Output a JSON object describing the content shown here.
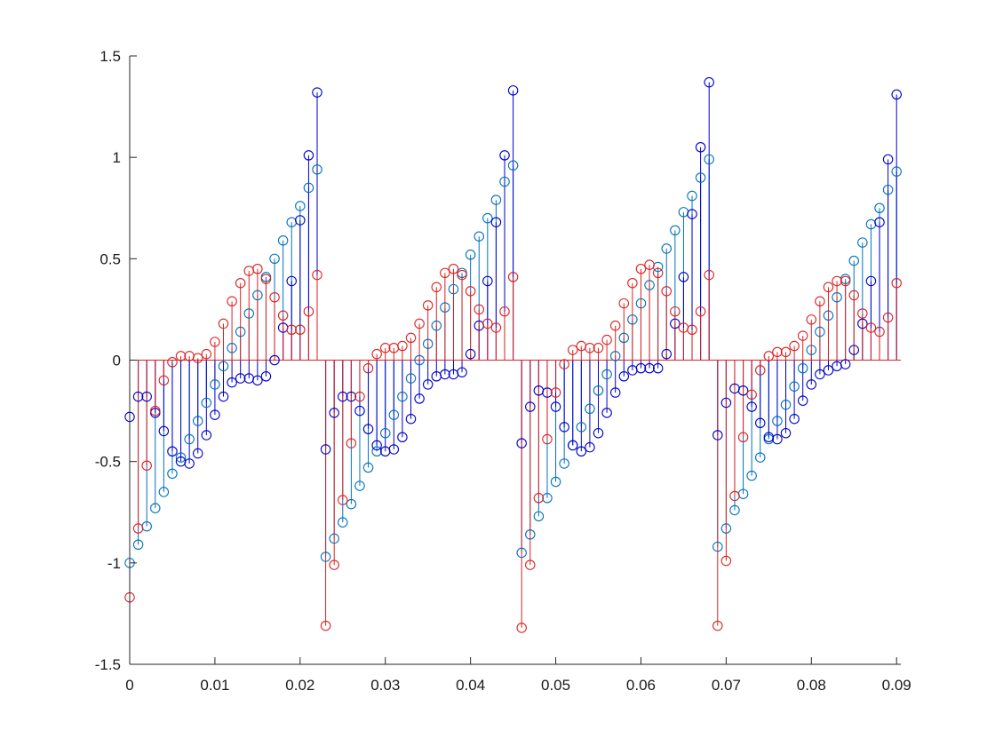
{
  "chart_data": {
    "type": "stem",
    "title": "",
    "xlabel": "",
    "ylabel": "",
    "xlim": [
      0,
      0.0905
    ],
    "ylim": [
      -1.5,
      1.5
    ],
    "xticks": [
      0,
      0.01,
      0.02,
      0.03,
      0.04,
      0.05,
      0.06,
      0.07,
      0.08,
      0.09
    ],
    "xtick_labels": [
      "0",
      "0.01",
      "0.02",
      "0.03",
      "0.04",
      "0.05",
      "0.06",
      "0.07",
      "0.08",
      "0.09"
    ],
    "yticks": [
      -1.5,
      -1,
      -0.5,
      0,
      0.5,
      1,
      1.5
    ],
    "ytick_labels": [
      "-1.5",
      "-1",
      "-0.5",
      "0",
      "0.5",
      "1",
      "1.5"
    ],
    "grid": false,
    "legend": "none",
    "x_start": 0,
    "x_step": 0.001,
    "series": [
      {
        "color": "#0072bd",
        "marker": "circle",
        "values": [
          -1.0,
          -0.91,
          -0.82,
          -0.73,
          -0.65,
          -0.56,
          -0.48,
          -0.39,
          -0.3,
          -0.21,
          -0.12,
          -0.03,
          0.06,
          0.14,
          0.23,
          0.32,
          0.41,
          0.5,
          0.59,
          0.68,
          0.76,
          0.85,
          0.94,
          -0.97,
          -0.88,
          -0.8,
          -0.71,
          -0.62,
          -0.53,
          -0.45,
          -0.36,
          -0.27,
          -0.18,
          -0.09,
          0.0,
          0.08,
          0.17,
          0.26,
          0.35,
          0.43,
          0.52,
          0.61,
          0.7,
          0.79,
          0.88,
          0.96,
          -0.95,
          -0.86,
          -0.77,
          -0.68,
          -0.6,
          -0.51,
          -0.42,
          -0.33,
          -0.24,
          -0.15,
          -0.07,
          0.02,
          0.11,
          0.2,
          0.28,
          0.37,
          0.46,
          0.55,
          0.64,
          0.73,
          0.81,
          0.9,
          0.99,
          -0.92,
          -0.83,
          -0.74,
          -0.66,
          -0.57,
          -0.48,
          -0.39,
          -0.3,
          -0.22,
          -0.13,
          -0.04,
          0.05,
          0.14,
          0.22,
          0.31,
          0.4,
          0.49,
          0.58,
          0.67,
          0.75,
          0.84,
          0.93
        ]
      },
      {
        "color": "#0000cc",
        "marker": "circle",
        "values": [
          -0.28,
          -0.18,
          -0.18,
          -0.26,
          -0.35,
          -0.45,
          -0.5,
          -0.51,
          -0.46,
          -0.37,
          -0.27,
          -0.18,
          -0.11,
          -0.09,
          -0.09,
          -0.1,
          -0.08,
          0.0,
          0.16,
          0.39,
          0.69,
          1.01,
          1.32,
          -0.44,
          -0.26,
          -0.18,
          -0.18,
          -0.25,
          -0.34,
          -0.42,
          -0.45,
          -0.44,
          -0.38,
          -0.29,
          -0.19,
          -0.12,
          -0.08,
          -0.07,
          -0.07,
          -0.06,
          0.03,
          0.17,
          0.39,
          0.68,
          1.01,
          1.33,
          -0.41,
          -0.23,
          -0.15,
          -0.16,
          -0.23,
          -0.33,
          -0.42,
          -0.45,
          -0.43,
          -0.36,
          -0.26,
          -0.16,
          -0.08,
          -0.05,
          -0.04,
          -0.04,
          -0.04,
          0.03,
          0.18,
          0.41,
          0.72,
          1.05,
          1.37,
          -0.37,
          -0.21,
          -0.14,
          -0.15,
          -0.23,
          -0.31,
          -0.38,
          -0.39,
          -0.36,
          -0.29,
          -0.2,
          -0.12,
          -0.07,
          -0.05,
          -0.03,
          -0.02,
          0.05,
          0.18,
          0.39,
          0.68,
          0.99,
          1.31
        ]
      },
      {
        "color": "#dd2222",
        "marker": "circle",
        "values": [
          -1.17,
          -0.83,
          -0.52,
          -0.25,
          -0.1,
          -0.01,
          0.02,
          0.02,
          0.01,
          0.03,
          0.09,
          0.18,
          0.29,
          0.38,
          0.44,
          0.45,
          0.4,
          0.31,
          0.22,
          0.15,
          0.15,
          0.24,
          0.42,
          -1.31,
          -1.01,
          -0.69,
          -0.41,
          -0.18,
          -0.04,
          0.03,
          0.06,
          0.06,
          0.07,
          0.11,
          0.18,
          0.27,
          0.36,
          0.43,
          0.45,
          0.42,
          0.34,
          0.25,
          0.18,
          0.16,
          0.24,
          0.41,
          -1.32,
          -1.01,
          -0.68,
          -0.39,
          -0.16,
          -0.02,
          0.05,
          0.07,
          0.06,
          0.06,
          0.1,
          0.17,
          0.28,
          0.38,
          0.45,
          0.47,
          0.43,
          0.34,
          0.24,
          0.16,
          0.15,
          0.24,
          0.42,
          -1.31,
          -0.99,
          -0.67,
          -0.38,
          -0.17,
          -0.05,
          0.02,
          0.04,
          0.04,
          0.07,
          0.12,
          0.2,
          0.29,
          0.36,
          0.39,
          0.39,
          0.32,
          0.23,
          0.16,
          0.14,
          0.21,
          0.38
        ]
      }
    ]
  }
}
